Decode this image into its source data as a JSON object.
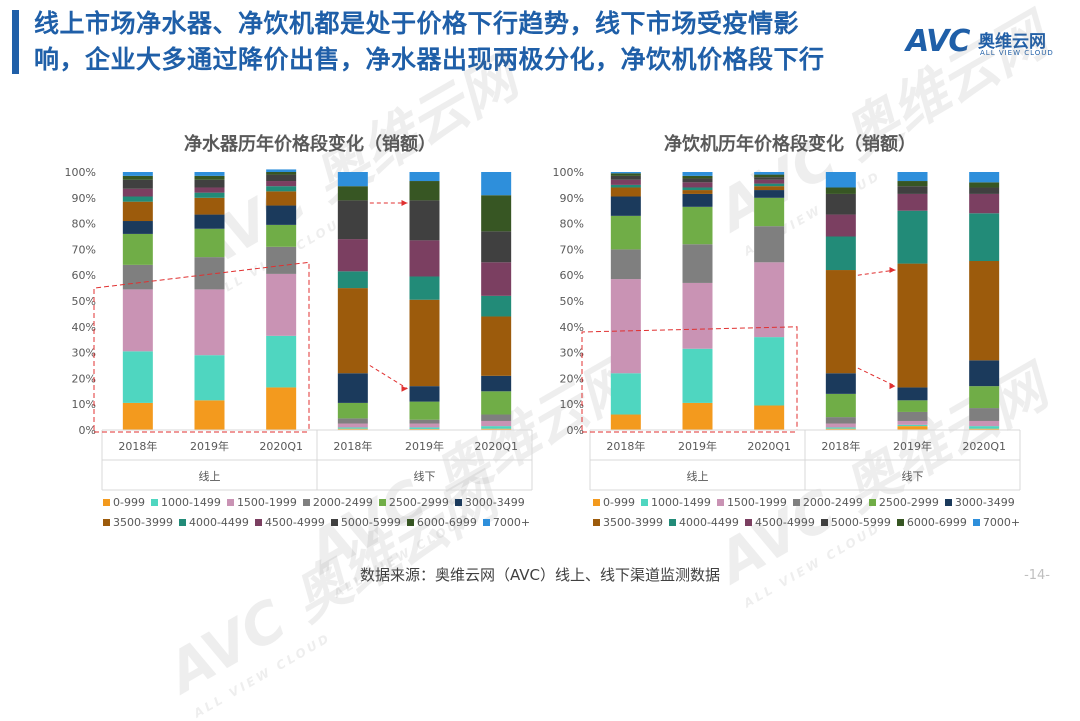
{
  "title_lines": [
    "线上市场净水器、净饮机都是处于价格下行趋势，线下市场受疫情影",
    "响，企业大多通过降价出售，净水器出现两极分化，净饮机价格段下行"
  ],
  "logo": {
    "mark": "AVC",
    "cn": "奥维云网",
    "en": "ALL VIEW CLOUD"
  },
  "watermark": {
    "mark": "AVC",
    "cn": "奥维云网",
    "en": "ALL VIEW CLOUD"
  },
  "footer": "数据来源：奥维云网（AVC）线上、线下渠道监测数据",
  "page_number": "-14-",
  "colors": {
    "0-999": "#f39a1e",
    "1000-1499": "#4fd6c0",
    "1500-1999": "#c993b4",
    "2000-2499": "#7f7f7f",
    "2500-2999": "#70ad47",
    "3000-3499": "#1b3a5c",
    "3500-3999": "#9c5b0c",
    "4000-4499": "#228b78",
    "4500-4999": "#7b3f61",
    "5000-5999": "#404040",
    "6000-6999": "#375623",
    "7000+": "#2e8fdb"
  },
  "chart_data": [
    {
      "type": "bar",
      "stacked": true,
      "title": "净水器历年价格段变化（销额）",
      "categories": [
        "2018年",
        "2019年",
        "2020Q1",
        "2018年",
        "2019年",
        "2020Q1"
      ],
      "groups": [
        "线上",
        "线下"
      ],
      "yticks": [
        "0%",
        "10%",
        "20%",
        "30%",
        "40%",
        "50%",
        "60%",
        "70%",
        "80%",
        "90%",
        "100%"
      ],
      "ylim": [
        0,
        100
      ],
      "series": [
        {
          "name": "0-999",
          "values": [
            10.5,
            11.5,
            16.5,
            0.5,
            0.4,
            0.5
          ]
        },
        {
          "name": "1000-1499",
          "values": [
            20.0,
            17.5,
            20.0,
            0.5,
            0.6,
            1.0
          ]
        },
        {
          "name": "1500-1999",
          "values": [
            24.0,
            25.5,
            24.0,
            1.5,
            1.5,
            2.0
          ]
        },
        {
          "name": "2000-2499",
          "values": [
            9.5,
            12.5,
            10.5,
            2.0,
            1.5,
            2.5
          ]
        },
        {
          "name": "2500-2999",
          "values": [
            12.0,
            11.0,
            8.5,
            6.0,
            7.0,
            9.0
          ]
        },
        {
          "name": "3000-3499",
          "values": [
            5.0,
            5.5,
            7.5,
            11.5,
            6.0,
            6.0
          ]
        },
        {
          "name": "3500-3999",
          "values": [
            7.5,
            6.5,
            5.5,
            33.0,
            33.5,
            23.0
          ]
        },
        {
          "name": "4000-4499",
          "values": [
            2.0,
            2.0,
            2.0,
            6.5,
            9.0,
            8.0
          ]
        },
        {
          "name": "4500-4999",
          "values": [
            3.0,
            2.0,
            2.0,
            12.5,
            14.0,
            13.0
          ]
        },
        {
          "name": "5000-5999",
          "values": [
            3.5,
            3.0,
            2.5,
            15.0,
            15.5,
            12.0
          ]
        },
        {
          "name": "6000-6999",
          "values": [
            1.5,
            1.5,
            1.0,
            5.5,
            7.5,
            14.0
          ]
        },
        {
          "name": "7000+",
          "values": [
            1.5,
            1.5,
            1.0,
            5.5,
            3.5,
            9.0
          ]
        }
      ]
    },
    {
      "type": "bar",
      "stacked": true,
      "title": "净饮机历年价格段变化（销额）",
      "categories": [
        "2018年",
        "2019年",
        "2020Q1",
        "2018年",
        "2019年",
        "2020Q1"
      ],
      "groups": [
        "线上",
        "线下"
      ],
      "yticks": [
        "0%",
        "10%",
        "20%",
        "30%",
        "40%",
        "50%",
        "60%",
        "70%",
        "80%",
        "90%",
        "100%"
      ],
      "ylim": [
        0,
        100
      ],
      "series": [
        {
          "name": "0-999",
          "values": [
            6.0,
            10.5,
            9.5,
            0.5,
            1.5,
            0.5
          ]
        },
        {
          "name": "1000-1499",
          "values": [
            16.0,
            21.0,
            26.5,
            0.5,
            0.5,
            1.0
          ]
        },
        {
          "name": "1500-1999",
          "values": [
            36.5,
            25.5,
            29.0,
            1.5,
            1.5,
            2.0
          ]
        },
        {
          "name": "2000-2499",
          "values": [
            11.5,
            15.0,
            14.0,
            2.5,
            3.5,
            5.0
          ]
        },
        {
          "name": "2500-2999",
          "values": [
            13.0,
            14.5,
            11.0,
            9.0,
            4.5,
            8.5
          ]
        },
        {
          "name": "3000-3499",
          "values": [
            7.5,
            5.0,
            3.0,
            8.0,
            5.0,
            10.0
          ]
        },
        {
          "name": "3500-3999",
          "values": [
            3.5,
            1.5,
            1.5,
            40.0,
            48.0,
            38.5
          ]
        },
        {
          "name": "4000-4499",
          "values": [
            1.0,
            1.0,
            1.0,
            13.0,
            20.5,
            18.5
          ]
        },
        {
          "name": "4500-4999",
          "values": [
            2.0,
            2.0,
            1.5,
            8.5,
            6.5,
            7.5
          ]
        },
        {
          "name": "5000-5999",
          "values": [
            1.5,
            1.5,
            1.0,
            8.0,
            3.0,
            2.5
          ]
        },
        {
          "name": "6000-6999",
          "values": [
            1.0,
            1.0,
            1.0,
            2.5,
            2.0,
            2.0
          ]
        },
        {
          "name": "7000+",
          "values": [
            0.5,
            1.5,
            1.0,
            6.0,
            3.5,
            4.0
          ]
        }
      ]
    }
  ]
}
